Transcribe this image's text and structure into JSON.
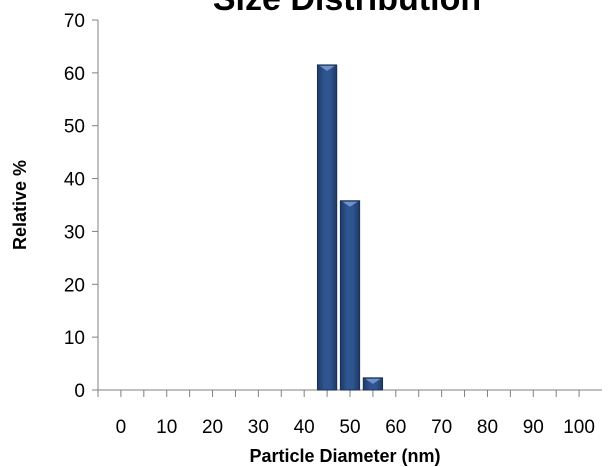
{
  "chart_data": {
    "type": "bar",
    "title": "Size Distribution",
    "xlabel": "Particle Diameter (nm)",
    "ylabel": "Relative %",
    "x_ticks": [
      "0",
      "10",
      "20",
      "30",
      "40",
      "50",
      "60",
      "70",
      "80",
      "90",
      "100"
    ],
    "y_ticks": [
      "0",
      "10",
      "20",
      "30",
      "40",
      "50",
      "60",
      "70"
    ],
    "xlim": [
      0,
      100
    ],
    "ylim": [
      0,
      70
    ],
    "bin_width": 5,
    "bars": [
      {
        "x": 45,
        "value": 61.5
      },
      {
        "x": 50,
        "value": 35.8
      },
      {
        "x": 55,
        "value": 2.3
      }
    ],
    "grid": false,
    "legend": "none",
    "colors": {
      "bar_fill": "#2e4f82",
      "bar_edge": "#1a2f55",
      "axis": "#808080"
    }
  }
}
